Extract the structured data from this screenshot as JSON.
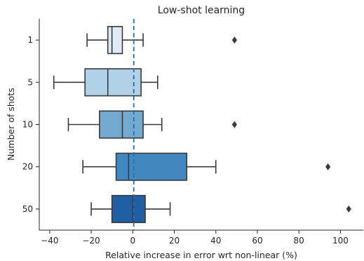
{
  "chart_data": {
    "type": "box",
    "title": "Low-shot learning",
    "xlabel": "Relative increase in error wrt non-linear (%)",
    "ylabel": "Number of shots",
    "xlim": [
      -45,
      111
    ],
    "xticks": [
      -40,
      -20,
      0,
      20,
      40,
      60,
      80,
      100
    ],
    "xtick_labels": [
      "−40",
      "−20",
      "0",
      "20",
      "40",
      "60",
      "80",
      "100"
    ],
    "reference_line": {
      "x": 0.5,
      "style": "dashed",
      "color": "#2f6fa6"
    },
    "grid": false,
    "categories": [
      "1",
      "5",
      "10",
      "20",
      "50"
    ],
    "boxes": [
      {
        "label": "1",
        "whisker_low": -22,
        "q1": -12,
        "median": -10,
        "q3": -5,
        "whisker_high": 5,
        "outliers": [
          49
        ],
        "color": "#deebf7"
      },
      {
        "label": "5",
        "whisker_low": -38,
        "q1": -23,
        "median": -12,
        "q3": 4,
        "whisker_high": 12,
        "outliers": [],
        "color": "#b0d1e8"
      },
      {
        "label": "10",
        "whisker_low": -31,
        "q1": -16,
        "median": -5,
        "q3": 5,
        "whisker_high": 14,
        "outliers": [
          49
        ],
        "color": "#74a9cf"
      },
      {
        "label": "20",
        "whisker_low": -24,
        "q1": -8,
        "median": -2,
        "q3": 26,
        "whisker_high": 40,
        "outliers": [
          94
        ],
        "color": "#4188c0"
      },
      {
        "label": "50",
        "whisker_low": -20,
        "q1": -10,
        "median": 0,
        "q3": 6,
        "whisker_high": 18,
        "outliers": [
          104
        ],
        "color": "#1f5fa4"
      }
    ]
  }
}
